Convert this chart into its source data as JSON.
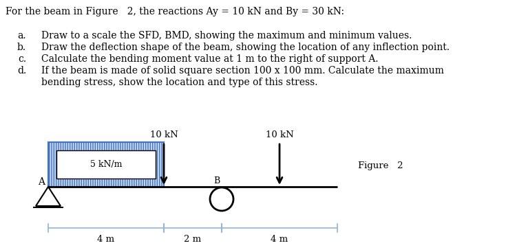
{
  "title_line": "For the beam in Figure   2, the reactions Ay = 10 kN and By = 30 kN:",
  "item_a_label": "a.",
  "item_a_text": "Draw to a scale the SFD, BMD, showing the maximum and minimum values.",
  "item_b_label": "b.",
  "item_b_text": "Draw the deflection shape of the beam, showing the location of any inflection point.",
  "item_c_label": "c.",
  "item_c_text": "Calculate the bending moment value at 1 m to the right of support A.",
  "item_d_label": "d.",
  "item_d_text1": "If the beam is made of solid square section 100 x 100 mm. Calculate the maximum",
  "item_d_text2": "bending stress, show the location and type of this stress.",
  "load_label_left": "10 kN",
  "load_label_right": "10 kN",
  "dist_load_label": "5 kN/m",
  "figure_label": "Figure   2",
  "dim_left": "4 m",
  "dim_mid": "2 m",
  "dim_right": "4 m",
  "support_a_label": "A",
  "support_b_label": "B",
  "bg_color": "#ffffff",
  "beam_color": "#000000",
  "dist_rect_edge_color": "#4472C4",
  "dist_rect_face_color": "#C5D9F1",
  "inner_box_color": "#ffffff",
  "dim_line_color": "#8DB4E2",
  "font_family": "serif"
}
